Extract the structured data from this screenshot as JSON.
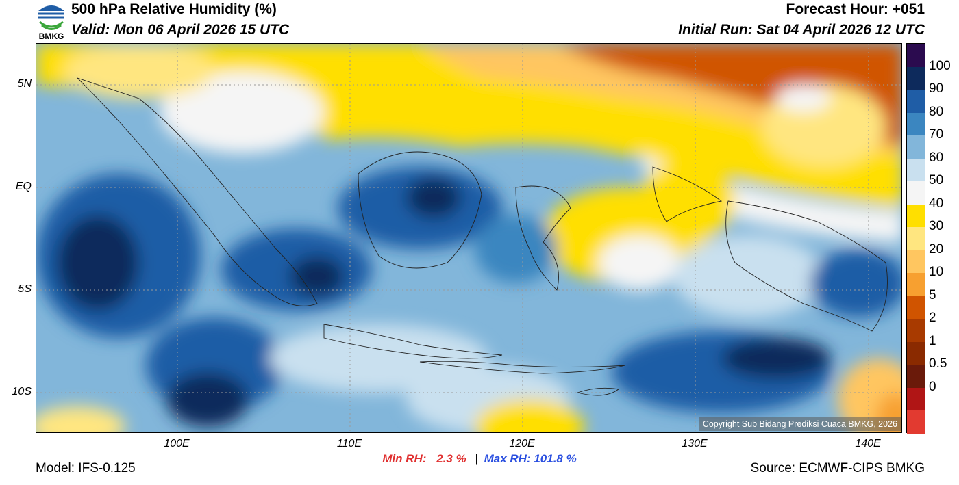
{
  "header": {
    "logo_text": "BMKG",
    "title": "500 hPa Relative Humidity (%)",
    "valid": "Valid: Mon 06 April 2026 15 UTC",
    "forecast_hour": "Forecast Hour: +051",
    "initial_run": "Initial Run: Sat 04 April 2026 12 UTC"
  },
  "map": {
    "lat_labels": [
      "5N",
      "EQ",
      "5S",
      "10S"
    ],
    "lon_labels": [
      "100E",
      "110E",
      "120E",
      "130E",
      "140E"
    ],
    "copyright": "Copyright Sub Bidang Prediksi Cuaca BMKG, 2026"
  },
  "colorbar": {
    "colors": [
      "#2b0b4f",
      "#0d2a5c",
      "#1f5da6",
      "#3b86c0",
      "#82b6da",
      "#c9e0ef",
      "#f5f5f5",
      "#ffdf00",
      "#ffe680",
      "#ffc660",
      "#f7a030",
      "#d05400",
      "#a83a00",
      "#8a2a00",
      "#6a1a0a",
      "#b01515",
      "#e23a30"
    ],
    "labels": [
      "100",
      "90",
      "80",
      "70",
      "60",
      "50",
      "40",
      "30",
      "20",
      "10",
      "5",
      "2",
      "1",
      "0.5",
      "0"
    ]
  },
  "stats": {
    "min_label": "Min RH:",
    "min_value": "2.3 %",
    "separator": "|",
    "max_label": "Max RH:",
    "max_value": "101.8 %"
  },
  "footer": {
    "model": "Model: IFS-0.125",
    "source": "Source: ECMWF-CIPS BMKG"
  }
}
